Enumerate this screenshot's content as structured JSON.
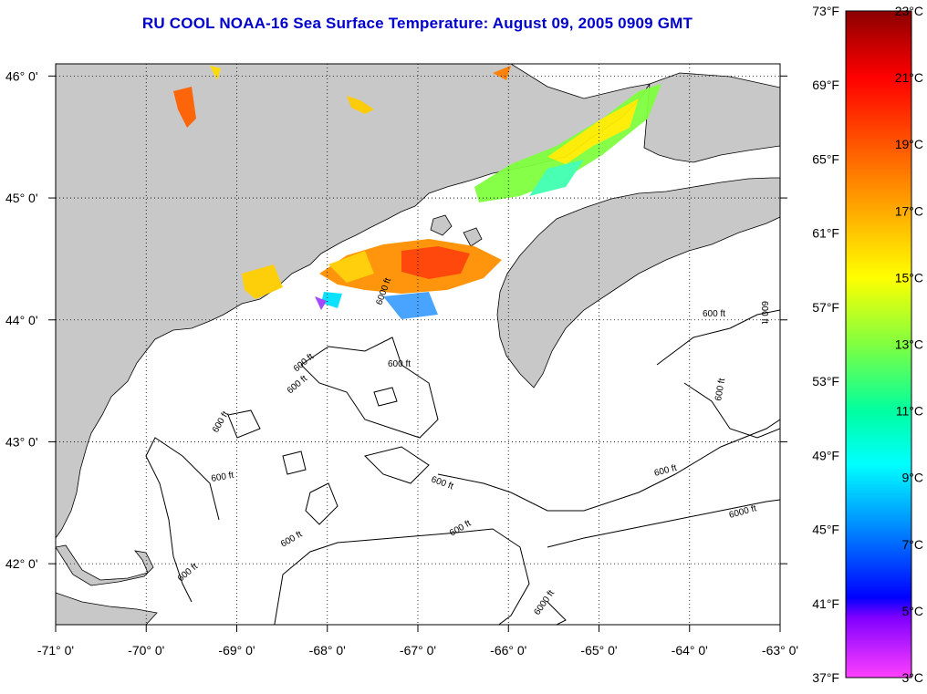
{
  "title": "RU COOL  NOAA-16  Sea Surface Temperature:  August 09, 2005 0909 GMT",
  "map": {
    "lon_range": [
      -71,
      -63
    ],
    "lat_range": [
      41.5,
      46.1
    ],
    "lon_ticks": [
      {
        "value": -71,
        "label": "-71° 0'"
      },
      {
        "value": -70,
        "label": "-70° 0'"
      },
      {
        "value": -69,
        "label": "-69° 0'"
      },
      {
        "value": -68,
        "label": "-68° 0'"
      },
      {
        "value": -67,
        "label": "-67° 0'"
      },
      {
        "value": -66,
        "label": "-66° 0'"
      },
      {
        "value": -65,
        "label": "-65° 0'"
      },
      {
        "value": -64,
        "label": "-64° 0'"
      },
      {
        "value": -63,
        "label": "-63° 0'"
      }
    ],
    "lat_ticks": [
      {
        "value": 46,
        "label": "46° 0'"
      },
      {
        "value": 45,
        "label": "45° 0'"
      },
      {
        "value": 44,
        "label": "44° 0'"
      },
      {
        "value": 43,
        "label": "43° 0'"
      },
      {
        "value": 42,
        "label": "42° 0'"
      }
    ],
    "land_color": "#c8c8c8",
    "water_color": "#ffffff",
    "contour_labels": [
      "600 ft",
      "600 ft",
      "600 ft",
      "600 ft",
      "600 ft",
      "600 ft",
      "600 ft",
      "600 ft",
      "600 ft",
      "600 ft",
      "600 ft",
      "600 ft",
      "600 ft",
      "6000 ft",
      "6000 ft",
      "6000 ft"
    ]
  },
  "colorbar": {
    "fahrenheit_labels": [
      "73°F",
      "69°F",
      "65°F",
      "61°F",
      "57°F",
      "53°F",
      "49°F",
      "45°F",
      "41°F",
      "37°F"
    ],
    "celsius_labels": [
      "23°C",
      "21°C",
      "19°C",
      "17°C",
      "15°C",
      "13°C",
      "11°C",
      "9°C",
      "7°C",
      "5°C",
      "3°C"
    ],
    "range_celsius": [
      3,
      23
    ],
    "colors_top_to_bottom": [
      "#8b0000",
      "#ff0000",
      "#ff8000",
      "#ffff00",
      "#80ff00",
      "#00ff80",
      "#00ffff",
      "#0080ff",
      "#0000ff",
      "#8000ff",
      "#ff00ff",
      "#ff69b4"
    ]
  }
}
